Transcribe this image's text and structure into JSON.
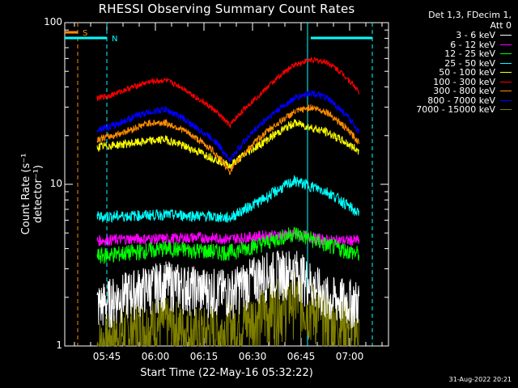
{
  "chart_data": {
    "type": "line",
    "title": "RHESSI Observing Summary Count Rates",
    "xlabel": "Start Time (22-May-16 05:32:22)",
    "ylabel": "Count Rate (s⁻¹ detector⁻¹)",
    "y_scale": "log",
    "ylim": [
      1,
      100
    ],
    "y_ticks": [
      "1",
      "10",
      "100"
    ],
    "x_ticks": [
      "05:45",
      "06:00",
      "06:15",
      "06:30",
      "06:45",
      "07:00"
    ],
    "x_range_min": [
      32,
      132
    ],
    "grid": false,
    "legend_header": [
      "Det 1,3, FDecim 1,",
      "Att 0"
    ],
    "legend_position": "right",
    "series": [
      {
        "name": "3 - 6 keV",
        "color": "#ffffff",
        "x_min": [
          42,
          53,
          63,
          73,
          83,
          93,
          103,
          113,
          123
        ],
        "values": [
          1.8,
          2.2,
          2.5,
          2.3,
          2.2,
          2.8,
          3.0,
          2.0,
          1.9
        ]
      },
      {
        "name": "6 - 12 keV",
        "color": "#ff00ff",
        "x_min": [
          42,
          53,
          63,
          73,
          83,
          93,
          103,
          113,
          123
        ],
        "values": [
          4.5,
          4.6,
          4.6,
          4.7,
          4.6,
          4.8,
          4.9,
          4.5,
          4.5
        ]
      },
      {
        "name": "12 - 25 keV",
        "color": "#00ff00",
        "x_min": [
          42,
          53,
          63,
          73,
          83,
          93,
          103,
          113,
          123
        ],
        "values": [
          3.6,
          3.8,
          4.0,
          3.9,
          3.8,
          4.3,
          5.0,
          4.2,
          3.7
        ]
      },
      {
        "name": "25 - 50 keV",
        "color": "#00ffff",
        "x_min": [
          42,
          53,
          63,
          73,
          83,
          93,
          103,
          113,
          123
        ],
        "values": [
          6.3,
          6.4,
          6.5,
          6.4,
          6.2,
          8.0,
          10.5,
          9.0,
          6.5
        ]
      },
      {
        "name": "50 - 100 keV",
        "color": "#ffff00",
        "x_min": [
          42,
          53,
          63,
          73,
          83,
          93,
          103,
          113,
          123
        ],
        "values": [
          17,
          18,
          19,
          16,
          13,
          18,
          24,
          21,
          16
        ]
      },
      {
        "name": "100 - 300 keV",
        "color": "#ff0000",
        "x_min": [
          42,
          47,
          53,
          58,
          63,
          68,
          73,
          78,
          83,
          88,
          93,
          98,
          103,
          108,
          113,
          118,
          123
        ],
        "values": [
          34,
          36,
          40,
          43,
          44,
          40,
          34,
          29,
          23,
          30,
          37,
          46,
          55,
          59,
          57,
          48,
          37
        ]
      },
      {
        "name": "300 - 800 keV",
        "color": "#ff8c00",
        "x_min": [
          42,
          47,
          53,
          58,
          63,
          68,
          73,
          78,
          83,
          88,
          93,
          98,
          103,
          108,
          113,
          118,
          123
        ],
        "values": [
          19,
          20,
          22,
          24,
          24,
          22,
          19,
          16,
          12,
          16,
          20,
          24,
          28,
          30,
          28,
          23,
          18
        ]
      },
      {
        "name": "800 - 7000 keV",
        "color": "#0000ff",
        "x_min": [
          42,
          47,
          53,
          58,
          63,
          68,
          73,
          78,
          83,
          88,
          93,
          98,
          103,
          108,
          113,
          118,
          123
        ],
        "values": [
          22,
          23,
          26,
          28,
          29,
          26,
          22,
          19,
          14,
          19,
          24,
          29,
          34,
          37,
          34,
          28,
          21
        ]
      },
      {
        "name": "7000 - 15000 keV",
        "color": "#808000",
        "x_min": [
          42,
          53,
          63,
          73,
          83,
          93,
          103,
          113,
          123
        ],
        "values": [
          1.0,
          1.3,
          1.4,
          1.2,
          1.3,
          1.6,
          2.0,
          1.5,
          1.3
        ]
      }
    ],
    "annotations": [
      {
        "label": "S",
        "color": "#ff8c00",
        "x_min": 36,
        "style": "dashed"
      },
      {
        "label": "N",
        "color": "#00ffff",
        "x_min": 45,
        "style": "dashed"
      },
      {
        "label": "",
        "color": "#00ffff",
        "x_min": 127,
        "style": "dashed"
      },
      {
        "label": "",
        "color": "#00ffff",
        "x_min": 107,
        "style": "solid"
      }
    ]
  },
  "footer_date": "31-Aug-2022 20:21"
}
